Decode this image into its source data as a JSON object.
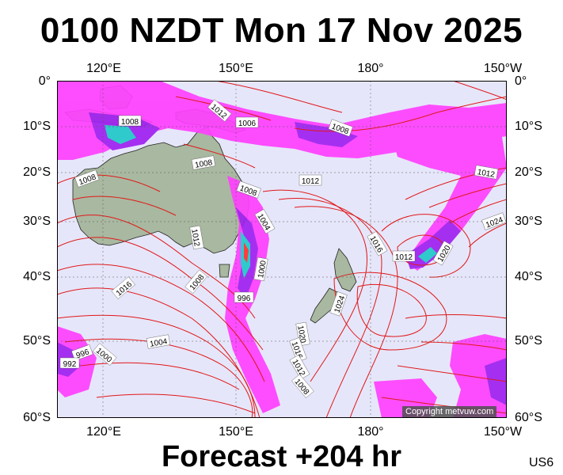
{
  "title": "0100 NZDT Mon 17 Nov 2025",
  "footer": "Forecast +204 hr",
  "region_code": "US6",
  "copyright": "Copyright metvuw.com",
  "lon_labels": [
    "120°E",
    "150°E",
    "180°",
    "150°W"
  ],
  "lat_labels": [
    "0°",
    "10°S",
    "20°S",
    "30°S",
    "40°S",
    "50°S",
    "60°S"
  ],
  "isobar_labels": [
    "1012",
    "1008",
    "1006",
    "1008",
    "1008",
    "1008",
    "1012",
    "1008",
    "1004",
    "1012",
    "1016",
    "1008",
    "1000",
    "996",
    "1024",
    "1016",
    "1012",
    "1020",
    "1024",
    "1012",
    "1020",
    "1016",
    "1012",
    "1008",
    "1004",
    "996",
    "992",
    "1000"
  ],
  "colors": {
    "ocean": "#e6e6fa",
    "land": "#a9b8a0",
    "isobar": "#e01818",
    "precip_light": "#ff40ff",
    "precip_mid": "#a020f0",
    "precip_heavy": "#20c8c8"
  }
}
